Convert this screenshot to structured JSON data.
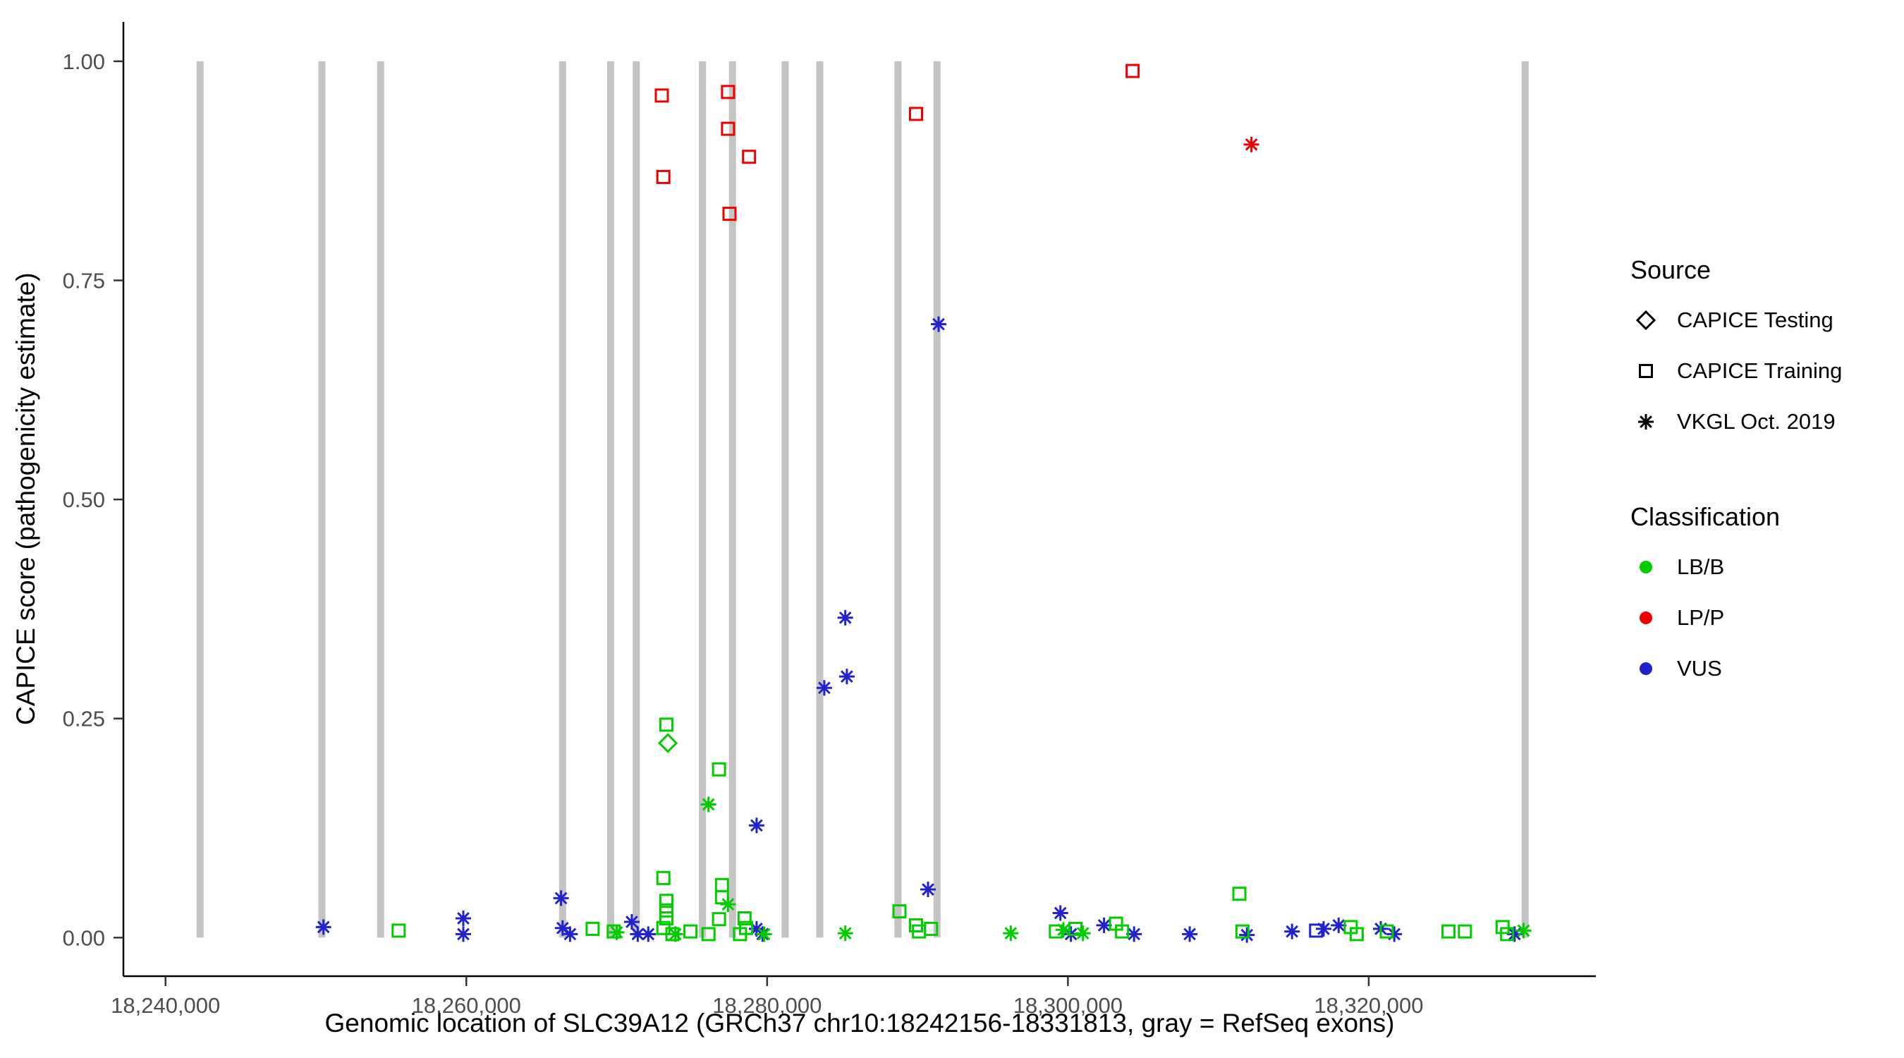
{
  "chart_data": {
    "type": "scatter",
    "title": "",
    "xlabel": "Genomic location of SLC39A12 (GRCh37 chr10:18242156-18331813, gray = RefSeq exons)",
    "ylabel": "CAPICE score (pathogenicity estimate)",
    "xlim": [
      18237200,
      18335100
    ],
    "ylim": [
      -0.044,
      1.045
    ],
    "grid": "off",
    "legend_position": "right",
    "x_ticks": [
      {
        "v": 18240000,
        "label": "18,240,000"
      },
      {
        "v": 18260000,
        "label": "18,260,000"
      },
      {
        "v": 18280000,
        "label": "18,280,000"
      },
      {
        "v": 18300000,
        "label": "18,300,000"
      },
      {
        "v": 18320000,
        "label": "18,320,000"
      }
    ],
    "y_ticks": [
      {
        "v": 0,
        "label": "0.00"
      },
      {
        "v": 0.25,
        "label": "0.25"
      },
      {
        "v": 0.5,
        "label": "0.50"
      },
      {
        "v": 0.75,
        "label": "0.75"
      },
      {
        "v": 1.0,
        "label": "1.00"
      }
    ],
    "exon_color": "#c4c4c4",
    "exons": [
      18242300,
      18250400,
      18254300,
      18266400,
      18269600,
      18271300,
      18275700,
      18277700,
      18281200,
      18283500,
      18288700,
      18291300,
      18330400
    ],
    "colors": {
      "LB/B": "#00cc00",
      "LP/P": "#ee0000",
      "VUS": "#2222cc"
    },
    "legend": {
      "source_title": "Source",
      "sources": [
        {
          "key": "testing",
          "label": "CAPICE Testing",
          "shape": "diamond"
        },
        {
          "key": "training",
          "label": "CAPICE Training",
          "shape": "square"
        },
        {
          "key": "vkgl",
          "label": "VKGL Oct. 2019",
          "shape": "asterisk"
        }
      ],
      "class_title": "Classification",
      "classes": [
        {
          "key": "LB/B",
          "label": "LB/B",
          "color": "#00cc00"
        },
        {
          "key": "LP/P",
          "label": "LP/P",
          "color": "#ee0000"
        },
        {
          "key": "VUS",
          "label": "VUS",
          "color": "#2222cc"
        }
      ]
    },
    "points": [
      {
        "x": 18273000,
        "y": 0.961,
        "source": "training",
        "class": "LP/P"
      },
      {
        "x": 18273100,
        "y": 0.868,
        "source": "training",
        "class": "LP/P"
      },
      {
        "x": 18277400,
        "y": 0.965,
        "source": "training",
        "class": "LP/P"
      },
      {
        "x": 18277400,
        "y": 0.923,
        "source": "training",
        "class": "LP/P"
      },
      {
        "x": 18277500,
        "y": 0.826,
        "source": "training",
        "class": "LP/P"
      },
      {
        "x": 18278800,
        "y": 0.891,
        "source": "training",
        "class": "LP/P"
      },
      {
        "x": 18289900,
        "y": 0.94,
        "source": "training",
        "class": "LP/P"
      },
      {
        "x": 18304300,
        "y": 0.989,
        "source": "training",
        "class": "LP/P"
      },
      {
        "x": 18312200,
        "y": 0.905,
        "source": "vkgl",
        "class": "LP/P"
      },
      {
        "x": 18291400,
        "y": 0.7,
        "source": "vkgl",
        "class": "VUS"
      },
      {
        "x": 18285200,
        "y": 0.365,
        "source": "vkgl",
        "class": "VUS"
      },
      {
        "x": 18283800,
        "y": 0.285,
        "source": "vkgl",
        "class": "VUS"
      },
      {
        "x": 18285300,
        "y": 0.298,
        "source": "vkgl",
        "class": "VUS"
      },
      {
        "x": 18279300,
        "y": 0.128,
        "source": "vkgl",
        "class": "VUS"
      },
      {
        "x": 18290700,
        "y": 0.055,
        "source": "vkgl",
        "class": "VUS"
      },
      {
        "x": 18250500,
        "y": 0.012,
        "source": "vkgl",
        "class": "VUS"
      },
      {
        "x": 18259800,
        "y": 0.022,
        "source": "vkgl",
        "class": "VUS"
      },
      {
        "x": 18259800,
        "y": 0.004,
        "source": "vkgl",
        "class": "VUS"
      },
      {
        "x": 18266300,
        "y": 0.045,
        "source": "vkgl",
        "class": "VUS"
      },
      {
        "x": 18266400,
        "y": 0.011,
        "source": "vkgl",
        "class": "VUS"
      },
      {
        "x": 18266900,
        "y": 0.004,
        "source": "vkgl",
        "class": "VUS"
      },
      {
        "x": 18271000,
        "y": 0.018,
        "source": "vkgl",
        "class": "VUS"
      },
      {
        "x": 18271400,
        "y": 0.004,
        "source": "vkgl",
        "class": "VUS"
      },
      {
        "x": 18272100,
        "y": 0.004,
        "source": "vkgl",
        "class": "VUS"
      },
      {
        "x": 18279300,
        "y": 0.01,
        "source": "vkgl",
        "class": "VUS"
      },
      {
        "x": 18279700,
        "y": 0.004,
        "source": "vkgl",
        "class": "VUS"
      },
      {
        "x": 18299500,
        "y": 0.028,
        "source": "vkgl",
        "class": "VUS"
      },
      {
        "x": 18300200,
        "y": 0.004,
        "source": "vkgl",
        "class": "VUS"
      },
      {
        "x": 18302400,
        "y": 0.014,
        "source": "vkgl",
        "class": "VUS"
      },
      {
        "x": 18304400,
        "y": 0.004,
        "source": "vkgl",
        "class": "VUS"
      },
      {
        "x": 18308100,
        "y": 0.004,
        "source": "vkgl",
        "class": "VUS"
      },
      {
        "x": 18311900,
        "y": 0.003,
        "source": "vkgl",
        "class": "VUS"
      },
      {
        "x": 18314900,
        "y": 0.007,
        "source": "vkgl",
        "class": "VUS"
      },
      {
        "x": 18317000,
        "y": 0.01,
        "source": "vkgl",
        "class": "VUS"
      },
      {
        "x": 18318000,
        "y": 0.014,
        "source": "vkgl",
        "class": "VUS"
      },
      {
        "x": 18320800,
        "y": 0.01,
        "source": "vkgl",
        "class": "VUS"
      },
      {
        "x": 18321700,
        "y": 0.004,
        "source": "vkgl",
        "class": "VUS"
      },
      {
        "x": 18329700,
        "y": 0.004,
        "source": "vkgl",
        "class": "VUS"
      },
      {
        "x": 18316500,
        "y": 0.008,
        "source": "training",
        "class": "VUS"
      },
      {
        "x": 18273400,
        "y": 0.222,
        "source": "testing",
        "class": "LB/B"
      },
      {
        "x": 18273300,
        "y": 0.243,
        "source": "training",
        "class": "LB/B"
      },
      {
        "x": 18276800,
        "y": 0.192,
        "source": "training",
        "class": "LB/B"
      },
      {
        "x": 18273100,
        "y": 0.068,
        "source": "training",
        "class": "LB/B"
      },
      {
        "x": 18277000,
        "y": 0.06,
        "source": "training",
        "class": "LB/B"
      },
      {
        "x": 18277000,
        "y": 0.046,
        "source": "training",
        "class": "LB/B"
      },
      {
        "x": 18273300,
        "y": 0.042,
        "source": "training",
        "class": "LB/B"
      },
      {
        "x": 18273300,
        "y": 0.031,
        "source": "training",
        "class": "LB/B"
      },
      {
        "x": 18273300,
        "y": 0.022,
        "source": "training",
        "class": "LB/B"
      },
      {
        "x": 18273100,
        "y": 0.011,
        "source": "training",
        "class": "LB/B"
      },
      {
        "x": 18273700,
        "y": 0.004,
        "source": "training",
        "class": "LB/B"
      },
      {
        "x": 18276800,
        "y": 0.021,
        "source": "training",
        "class": "LB/B"
      },
      {
        "x": 18278500,
        "y": 0.022,
        "source": "training",
        "class": "LB/B"
      },
      {
        "x": 18278600,
        "y": 0.011,
        "source": "training",
        "class": "LB/B"
      },
      {
        "x": 18288800,
        "y": 0.03,
        "source": "training",
        "class": "LB/B"
      },
      {
        "x": 18289900,
        "y": 0.014,
        "source": "training",
        "class": "LB/B"
      },
      {
        "x": 18290100,
        "y": 0.007,
        "source": "training",
        "class": "LB/B"
      },
      {
        "x": 18290900,
        "y": 0.01,
        "source": "training",
        "class": "LB/B"
      },
      {
        "x": 18311400,
        "y": 0.05,
        "source": "training",
        "class": "LB/B"
      },
      {
        "x": 18255500,
        "y": 0.008,
        "source": "training",
        "class": "LB/B"
      },
      {
        "x": 18268400,
        "y": 0.01,
        "source": "training",
        "class": "LB/B"
      },
      {
        "x": 18269800,
        "y": 0.007,
        "source": "training",
        "class": "LB/B"
      },
      {
        "x": 18274900,
        "y": 0.007,
        "source": "training",
        "class": "LB/B"
      },
      {
        "x": 18276100,
        "y": 0.004,
        "source": "training",
        "class": "LB/B"
      },
      {
        "x": 18278200,
        "y": 0.004,
        "source": "training",
        "class": "LB/B"
      },
      {
        "x": 18299200,
        "y": 0.007,
        "source": "training",
        "class": "LB/B"
      },
      {
        "x": 18300500,
        "y": 0.01,
        "source": "training",
        "class": "LB/B"
      },
      {
        "x": 18303200,
        "y": 0.016,
        "source": "training",
        "class": "LB/B"
      },
      {
        "x": 18303600,
        "y": 0.007,
        "source": "training",
        "class": "LB/B"
      },
      {
        "x": 18311600,
        "y": 0.007,
        "source": "training",
        "class": "LB/B"
      },
      {
        "x": 18318800,
        "y": 0.012,
        "source": "training",
        "class": "LB/B"
      },
      {
        "x": 18319200,
        "y": 0.004,
        "source": "training",
        "class": "LB/B"
      },
      {
        "x": 18321200,
        "y": 0.007,
        "source": "training",
        "class": "LB/B"
      },
      {
        "x": 18325300,
        "y": 0.007,
        "source": "training",
        "class": "LB/B"
      },
      {
        "x": 18326400,
        "y": 0.007,
        "source": "training",
        "class": "LB/B"
      },
      {
        "x": 18328900,
        "y": 0.012,
        "source": "training",
        "class": "LB/B"
      },
      {
        "x": 18329200,
        "y": 0.004,
        "source": "training",
        "class": "LB/B"
      },
      {
        "x": 18276100,
        "y": 0.152,
        "source": "vkgl",
        "class": "LB/B"
      },
      {
        "x": 18277400,
        "y": 0.038,
        "source": "vkgl",
        "class": "LB/B"
      },
      {
        "x": 18273900,
        "y": 0.004,
        "source": "vkgl",
        "class": "LB/B"
      },
      {
        "x": 18285200,
        "y": 0.005,
        "source": "vkgl",
        "class": "LB/B"
      },
      {
        "x": 18296200,
        "y": 0.005,
        "source": "vkgl",
        "class": "LB/B"
      },
      {
        "x": 18299700,
        "y": 0.009,
        "source": "vkgl",
        "class": "LB/B"
      },
      {
        "x": 18301000,
        "y": 0.005,
        "source": "vkgl",
        "class": "LB/B"
      },
      {
        "x": 18330300,
        "y": 0.008,
        "source": "vkgl",
        "class": "LB/B"
      },
      {
        "x": 18270000,
        "y": 0.006,
        "source": "vkgl",
        "class": "LB/B"
      },
      {
        "x": 18279800,
        "y": 0.004,
        "source": "vkgl",
        "class": "LB/B"
      }
    ]
  }
}
